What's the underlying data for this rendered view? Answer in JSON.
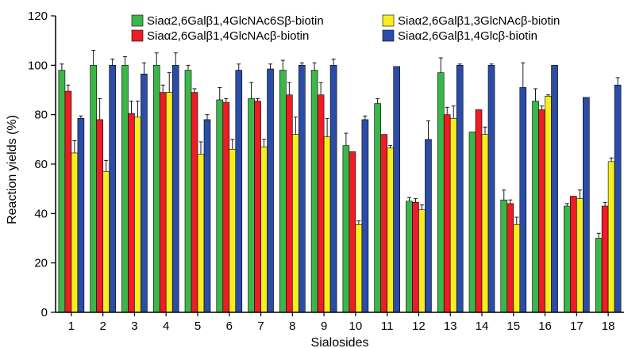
{
  "chart_data": {
    "type": "bar",
    "title": "",
    "xlabel": "Sialosides",
    "ylabel": "Reaction yields (%)",
    "ylim": [
      0,
      120
    ],
    "yticks": [
      0,
      20,
      40,
      60,
      80,
      100,
      120
    ],
    "grid": false,
    "legend_position": "top",
    "categories": [
      "1",
      "2",
      "3",
      "4",
      "5",
      "6",
      "7",
      "8",
      "9",
      "10",
      "11",
      "12",
      "13",
      "14",
      "15",
      "16",
      "17",
      "18"
    ],
    "series": [
      {
        "name": "Siaα2,6Galβ1,4GlcNAc6Sβ-biotin",
        "color": "#3cb649",
        "values": [
          98,
          100,
          100,
          100,
          98,
          86,
          86.5,
          98,
          98,
          67.5,
          84.5,
          45,
          97,
          73,
          45.5,
          85.5,
          43,
          30
        ],
        "errors": [
          2.5,
          6,
          3.5,
          5,
          2,
          5,
          6.5,
          4,
          3,
          5,
          2,
          1.5,
          6,
          0,
          4,
          5,
          1,
          2
        ]
      },
      {
        "name": "Siaα2,6Galβ1,4GlcNAcβ-biotin",
        "color": "#ee1c25",
        "values": [
          89.5,
          78,
          80.5,
          89,
          89,
          85,
          85.5,
          88,
          88,
          65,
          72,
          44.5,
          80,
          82,
          44,
          82,
          47,
          43
        ],
        "errors": [
          2.5,
          8.5,
          5,
          3,
          1.5,
          1.5,
          1,
          5,
          5,
          0,
          0,
          1.5,
          3,
          0,
          1.5,
          1.5,
          0,
          1.5
        ]
      },
      {
        "name": "Siaα2,6Galβ1,3GlcNAcβ-biotin",
        "color": "#f7ee1e",
        "values": [
          64.5,
          57,
          79,
          89,
          64,
          66,
          67,
          72,
          71,
          35.5,
          66.5,
          41.5,
          78.5,
          72,
          35.5,
          87.5,
          46,
          61
        ],
        "errors": [
          5,
          4.5,
          6.5,
          8,
          5,
          4,
          3,
          7,
          7.5,
          1.5,
          1,
          2,
          5,
          3,
          3,
          0.5,
          3.5,
          1.5
        ]
      },
      {
        "name": "Siaα2,6Galβ1,4Glcβ-biotin",
        "color": "#2b4ca7",
        "values": [
          78.5,
          100,
          96.5,
          100,
          78,
          98,
          98.5,
          100,
          100,
          78,
          99.5,
          70,
          100,
          100,
          91,
          100,
          87,
          92
        ],
        "errors": [
          1,
          2.5,
          4.5,
          5,
          2,
          2.5,
          2,
          1,
          2.5,
          1.5,
          0,
          7.5,
          0.5,
          0.5,
          10,
          0,
          0,
          3
        ]
      }
    ]
  }
}
